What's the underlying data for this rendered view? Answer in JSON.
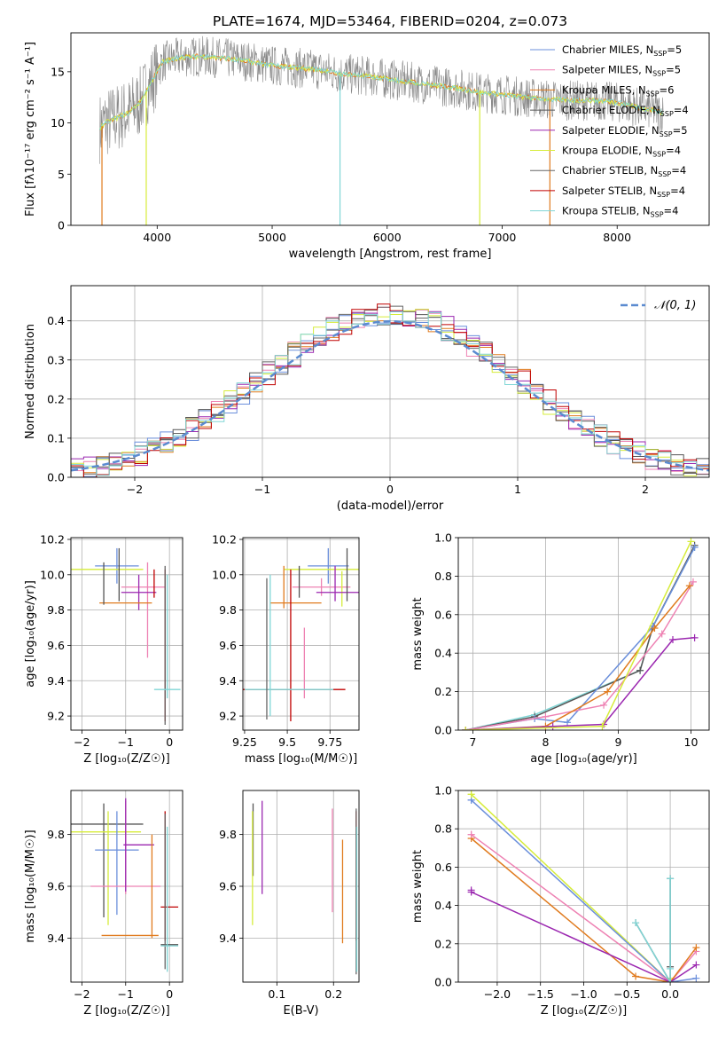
{
  "figure_title": "PLATE=1674, MJD=53464, FIBERID=0204, z=0.073",
  "palette": {
    "Chabrier MILES": "#6b8fdb",
    "Salpeter MILES": "#ee82b3",
    "Kroupa MILES": "#e07b1f",
    "Chabrier ELODIE": "#555555",
    "Salpeter ELODIE": "#9b27b0",
    "Kroupa ELODIE": "#d6ec3a",
    "Chabrier STELIB": "#666666",
    "Salpeter STELIB": "#c00000",
    "Kroupa STELIB": "#80d6d6",
    "normal": "#5b8bd0"
  },
  "chart_data": [
    {
      "id": "spectrum",
      "type": "line",
      "title": "PLATE=1674, MJD=53464, FIBERID=0204, z=0.073",
      "xlabel": "wavelength [Angstrom, rest frame]",
      "ylabel": "Flux [fλ10⁻¹⁷ erg cm⁻² s⁻¹ A⁻¹]",
      "xlim": [
        3250,
        8800
      ],
      "ylim": [
        0,
        18.8
      ],
      "xticks": [
        4000,
        5000,
        6000,
        7000,
        8000
      ],
      "yticks": [
        0,
        5,
        10,
        15
      ],
      "grid": false,
      "legend_position": "top-right",
      "legend": [
        {
          "label": "Chabrier MILES, N",
          "sub": "SSP",
          "suffix": "=5",
          "color": "#6b8fdb"
        },
        {
          "label": "Salpeter MILES, N",
          "sub": "SSP",
          "suffix": "=5",
          "color": "#ee82b3"
        },
        {
          "label": "Kroupa MILES, N",
          "sub": "SSP",
          "suffix": "=6",
          "color": "#e07b1f"
        },
        {
          "label": "Chabrier ELODIE, N",
          "sub": "SSP",
          "suffix": "=4",
          "color": "#555555"
        },
        {
          "label": "Salpeter ELODIE, N",
          "sub": "SSP",
          "suffix": "=5",
          "color": "#9b27b0"
        },
        {
          "label": "Kroupa ELODIE, N",
          "sub": "SSP",
          "suffix": "=4",
          "color": "#d6ec3a"
        },
        {
          "label": "Chabrier STELIB, N",
          "sub": "SSP",
          "suffix": "=4",
          "color": "#666666"
        },
        {
          "label": "Salpeter STELIB, N",
          "sub": "SSP",
          "suffix": "=4",
          "color": "#c00000"
        },
        {
          "label": "Kroupa STELIB, N",
          "sub": "SSP",
          "suffix": "=4",
          "color": "#80d6d6"
        }
      ],
      "continuum": {
        "x": [
          3500,
          3550,
          3650,
          3750,
          3850,
          3950,
          4050,
          4200,
          4400,
          4600,
          4800,
          5000,
          5200,
          5400,
          5600,
          5800,
          6000,
          6200,
          6400,
          6600,
          6800,
          7000,
          7200,
          7400,
          7600,
          7800,
          8000,
          8200,
          8400
        ],
        "y": [
          9.5,
          10.0,
          10.5,
          11.0,
          12.0,
          14.0,
          16.0,
          16.4,
          16.5,
          16.3,
          16.0,
          15.6,
          15.4,
          15.2,
          14.8,
          14.6,
          14.3,
          14.0,
          13.7,
          13.4,
          13.0,
          12.8,
          12.5,
          12.3,
          12.2,
          12.2,
          12.0,
          11.5,
          11.0
        ]
      },
      "drops": [
        {
          "x": 3520,
          "color": "#e07b1f"
        },
        {
          "x": 3905,
          "color": "#d6ec3a"
        },
        {
          "x": 5590,
          "color": "#80d6d6"
        },
        {
          "x": 6805,
          "color": "#d6ec3a"
        },
        {
          "x": 7415,
          "color": "#e07b1f"
        }
      ]
    },
    {
      "id": "residual-distribution",
      "type": "line",
      "xlabel": "(data-model)/error",
      "ylabel": "Normed distribution",
      "xlim": [
        -2.5,
        2.5
      ],
      "ylim": [
        0,
        0.49
      ],
      "xticks": [
        -2,
        -1,
        0,
        1,
        2
      ],
      "yticks": [
        0.0,
        0.1,
        0.2,
        0.3,
        0.4
      ],
      "grid": true,
      "legend_position": "top-right",
      "normal_label": "𝒩(0, 1)",
      "bin_width": 0.1,
      "series": [
        {
          "color": "#6b8fdb",
          "offset": 0.012
        },
        {
          "color": "#ee82b3",
          "offset": -0.015
        },
        {
          "color": "#e07b1f",
          "offset": 0.02
        },
        {
          "color": "#555555",
          "offset": 0.005
        },
        {
          "color": "#9b27b0",
          "offset": 0.025
        },
        {
          "color": "#d6ec3a",
          "offset": -0.01
        },
        {
          "color": "#666666",
          "offset": 0.0
        },
        {
          "color": "#c00000",
          "offset": 0.015
        },
        {
          "color": "#80d6d6",
          "offset": -0.005
        }
      ]
    },
    {
      "id": "age-vs-z",
      "type": "scatter",
      "xlabel": "Z [log₁₀(Z/Z☉)]",
      "ylabel": "age  [log₁₀(age/yr)]",
      "xlim": [
        -2.25,
        0.3
      ],
      "ylim": [
        9.12,
        10.21
      ],
      "xticks": [
        -2,
        -1,
        0
      ],
      "yticks": [
        9.2,
        9.4,
        9.6,
        9.8,
        10.0,
        10.2
      ],
      "grid": true,
      "errorbars": [
        {
          "x": -1.2,
          "xerr": 0.5,
          "y": 10.05,
          "yerr": 0.1,
          "color": "#6b8fdb"
        },
        {
          "x": -1.5,
          "xerr": 0.9,
          "y": 10.03,
          "yerr": 0.0,
          "color": "#d6ec3a"
        },
        {
          "x": -0.6,
          "xerr": 0.5,
          "y": 9.93,
          "yerr": 0.0,
          "color": "#ee82b3"
        },
        {
          "x": -0.5,
          "xerr": 0.0,
          "y": 9.8,
          "yerr": 0.27,
          "color": "#ee82b3"
        },
        {
          "x": -0.7,
          "xerr": 0.4,
          "y": 9.9,
          "yerr": 0.1,
          "color": "#9b27b0"
        },
        {
          "x": -1.0,
          "xerr": 0.6,
          "y": 9.84,
          "yerr": 0.0,
          "color": "#e07b1f"
        },
        {
          "x": -1.5,
          "xerr": 0.0,
          "y": 9.95,
          "yerr": 0.12,
          "color": "#555555"
        },
        {
          "x": -1.15,
          "xerr": 0.0,
          "y": 10.0,
          "yerr": 0.15,
          "color": "#555555"
        },
        {
          "x": -0.35,
          "xerr": 0.0,
          "y": 9.95,
          "yerr": 0.08,
          "color": "#c00000"
        },
        {
          "x": -0.1,
          "xerr": 0.0,
          "y": 9.6,
          "yerr": 0.43,
          "color": "#c00000"
        },
        {
          "x": -0.1,
          "xerr": 0.0,
          "y": 9.6,
          "yerr": 0.45,
          "color": "#666666"
        },
        {
          "x": -0.05,
          "xerr": 0.3,
          "y": 9.35,
          "yerr": 0.0,
          "color": "#80d6d6"
        },
        {
          "x": -0.05,
          "xerr": 0.0,
          "y": 9.65,
          "yerr": 0.35,
          "color": "#80d6d6"
        }
      ]
    },
    {
      "id": "age-vs-mass",
      "type": "scatter",
      "xlabel": "mass [log₁₀(M/M☉)]",
      "ylabel": "",
      "xlim": [
        9.24,
        9.92
      ],
      "ylim": [
        9.12,
        10.21
      ],
      "xticks": [
        9.25,
        9.5,
        9.75
      ],
      "yticks": [
        9.2,
        9.4,
        9.6,
        9.8,
        10.0,
        10.2
      ],
      "grid": true,
      "errorbars": [
        {
          "x": 9.74,
          "xerr": 0.12,
          "y": 10.05,
          "yerr": 0.1,
          "color": "#6b8fdb"
        },
        {
          "x": 9.7,
          "xerr": 0.17,
          "y": 9.93,
          "yerr": 0.05,
          "color": "#ee82b3"
        },
        {
          "x": 9.6,
          "xerr": 0.0,
          "y": 9.5,
          "yerr": 0.2,
          "color": "#ee82b3"
        },
        {
          "x": 9.7,
          "xerr": 0.22,
          "y": 10.03,
          "yerr": 0.0,
          "color": "#d6ec3a"
        },
        {
          "x": 9.82,
          "xerr": 0.0,
          "y": 9.92,
          "yerr": 0.1,
          "color": "#d6ec3a"
        },
        {
          "x": 9.8,
          "xerr": 0.13,
          "y": 9.9,
          "yerr": 0.0,
          "color": "#9b27b0"
        },
        {
          "x": 9.78,
          "xerr": 0.0,
          "y": 9.95,
          "yerr": 0.1,
          "color": "#9b27b0"
        },
        {
          "x": 9.55,
          "xerr": 0.15,
          "y": 9.84,
          "yerr": 0.0,
          "color": "#e07b1f"
        },
        {
          "x": 9.48,
          "xerr": 0.0,
          "y": 9.93,
          "yerr": 0.12,
          "color": "#e07b1f"
        },
        {
          "x": 9.85,
          "xerr": 0.0,
          "y": 10.0,
          "yerr": 0.15,
          "color": "#555555"
        },
        {
          "x": 9.57,
          "xerr": 0.0,
          "y": 9.96,
          "yerr": 0.09,
          "color": "#555555"
        },
        {
          "x": 9.52,
          "xerr": 0.32,
          "y": 9.35,
          "yerr": 0.0,
          "color": "#c00000"
        },
        {
          "x": 9.52,
          "xerr": 0.0,
          "y": 9.6,
          "yerr": 0.43,
          "color": "#c00000"
        },
        {
          "x": 9.51,
          "xerr": 0.26,
          "y": 9.35,
          "yerr": 0.0,
          "color": "#80d6d6"
        },
        {
          "x": 9.4,
          "xerr": 0.0,
          "y": 9.6,
          "yerr": 0.4,
          "color": "#80d6d6"
        },
        {
          "x": 9.38,
          "xerr": 0.0,
          "y": 9.58,
          "yerr": 0.4,
          "color": "#666666"
        }
      ]
    },
    {
      "id": "mass-weight-vs-age",
      "type": "line",
      "xlabel": "age  [log₁₀(age/yr)]",
      "ylabel": "mass weight",
      "xlim": [
        6.8,
        10.25
      ],
      "ylim": [
        0,
        1
      ],
      "xticks": [
        7,
        8,
        9,
        10
      ],
      "yticks": [
        0.0,
        0.2,
        0.4,
        0.6,
        0.8,
        1.0
      ],
      "grid": true,
      "series": [
        {
          "color": "#80d6d6",
          "x": [
            6.9,
            7.85,
            9.3,
            9.48,
            10.05
          ],
          "y": [
            0.0,
            0.08,
            0.31,
            0.54,
            0.95
          ]
        },
        {
          "color": "#555555",
          "x": [
            6.9,
            7.85,
            9.3,
            9.48,
            10.05
          ],
          "y": [
            0.0,
            0.07,
            0.31,
            0.54,
            0.96
          ]
        },
        {
          "color": "#6b8fdb",
          "x": [
            6.9,
            7.85,
            8.3,
            9.48,
            10.05
          ],
          "y": [
            0.0,
            0.06,
            0.04,
            0.54,
            0.95
          ]
        },
        {
          "color": "#ee82b3",
          "x": [
            6.9,
            8.0,
            8.8,
            9.6,
            10.03
          ],
          "y": [
            0.0,
            0.07,
            0.13,
            0.5,
            0.77
          ]
        },
        {
          "color": "#e07b1f",
          "x": [
            6.9,
            8.0,
            8.85,
            9.5,
            9.98
          ],
          "y": [
            0.0,
            0.02,
            0.2,
            0.53,
            0.75
          ]
        },
        {
          "color": "#9b27b0",
          "x": [
            6.9,
            8.1,
            8.8,
            9.75,
            10.05
          ],
          "y": [
            0.0,
            0.02,
            0.03,
            0.47,
            0.48
          ]
        },
        {
          "color": "#d6ec3a",
          "x": [
            6.9,
            8.78,
            10.0
          ],
          "y": [
            0.0,
            0.02,
            0.98
          ]
        }
      ]
    },
    {
      "id": "mass-vs-z",
      "type": "scatter",
      "xlabel": "Z [log₁₀(Z/Z☉)]",
      "ylabel": "mass [log₁₀(M/M☉)]",
      "xlim": [
        -2.25,
        0.3
      ],
      "ylim": [
        9.23,
        9.97
      ],
      "xticks": [
        -2,
        -1,
        0
      ],
      "yticks": [
        9.4,
        9.6,
        9.8
      ],
      "grid": true,
      "errorbars": [
        {
          "x": -1.5,
          "xerr": 0.9,
          "y": 9.84,
          "yerr": 0.0,
          "color": "#555555"
        },
        {
          "x": -1.5,
          "xerr": 0.0,
          "y": 9.7,
          "yerr": 0.22,
          "color": "#555555"
        },
        {
          "x": -1.5,
          "xerr": 0.85,
          "y": 9.81,
          "yerr": 0.0,
          "color": "#d6ec3a"
        },
        {
          "x": -1.4,
          "xerr": 0.0,
          "y": 9.67,
          "yerr": 0.22,
          "color": "#d6ec3a"
        },
        {
          "x": -1.2,
          "xerr": 0.5,
          "y": 9.74,
          "yerr": 0.0,
          "color": "#6b8fdb"
        },
        {
          "x": -1.2,
          "xerr": 0.0,
          "y": 9.69,
          "yerr": 0.2,
          "color": "#6b8fdb"
        },
        {
          "x": -1.0,
          "xerr": 0.8,
          "y": 9.6,
          "yerr": 0.0,
          "color": "#ee82b3"
        },
        {
          "x": -1.0,
          "xerr": 0.0,
          "y": 9.75,
          "yerr": 0.18,
          "color": "#ee82b3"
        },
        {
          "x": -0.7,
          "xerr": 0.35,
          "y": 9.76,
          "yerr": 0.0,
          "color": "#9b27b0"
        },
        {
          "x": -1.0,
          "xerr": 0.0,
          "y": 9.76,
          "yerr": 0.18,
          "color": "#9b27b0"
        },
        {
          "x": -0.9,
          "xerr": 0.65,
          "y": 9.41,
          "yerr": 0.0,
          "color": "#e07b1f"
        },
        {
          "x": -0.4,
          "xerr": 0.0,
          "y": 9.6,
          "yerr": 0.2,
          "color": "#e07b1f"
        },
        {
          "x": 0.0,
          "xerr": 0.2,
          "y": 9.52,
          "yerr": 0.0,
          "color": "#c00000"
        },
        {
          "x": -0.1,
          "xerr": 0.0,
          "y": 9.64,
          "yerr": 0.25,
          "color": "#c00000"
        },
        {
          "x": 0.0,
          "xerr": 0.2,
          "y": 9.375,
          "yerr": 0.0,
          "color": "#666666"
        },
        {
          "x": -0.1,
          "xerr": 0.0,
          "y": 9.58,
          "yerr": 0.3,
          "color": "#666666"
        },
        {
          "x": 0.0,
          "xerr": 0.2,
          "y": 9.37,
          "yerr": 0.0,
          "color": "#80d6d6"
        },
        {
          "x": -0.05,
          "xerr": 0.0,
          "y": 9.55,
          "yerr": 0.28,
          "color": "#80d6d6"
        }
      ]
    },
    {
      "id": "mass-vs-ebv",
      "type": "scatter",
      "xlabel": "E(B-V)",
      "ylabel": "",
      "xlim": [
        0.04,
        0.245
      ],
      "ylim": [
        9.23,
        9.97
      ],
      "xticks": [
        0.1,
        0.2
      ],
      "yticks": [
        9.4,
        9.6,
        9.8
      ],
      "grid": true,
      "errorbars": [
        {
          "x": 0.058,
          "xerr": 0.0,
          "y": 9.78,
          "yerr": 0.14,
          "color": "#555555"
        },
        {
          "x": 0.057,
          "xerr": 0.0,
          "y": 9.67,
          "yerr": 0.22,
          "color": "#d6ec3a"
        },
        {
          "x": 0.074,
          "xerr": 0.0,
          "y": 9.75,
          "yerr": 0.18,
          "color": "#9b27b0"
        },
        {
          "x": 0.198,
          "xerr": 0.0,
          "y": 9.7,
          "yerr": 0.2,
          "color": "#ee82b3"
        },
        {
          "x": 0.216,
          "xerr": 0.0,
          "y": 9.58,
          "yerr": 0.2,
          "color": "#e07b1f"
        },
        {
          "x": 0.24,
          "xerr": 0.0,
          "y": 9.64,
          "yerr": 0.25,
          "color": "#c00000"
        },
        {
          "x": 0.24,
          "xerr": 0.0,
          "y": 9.58,
          "yerr": 0.32,
          "color": "#666666"
        },
        {
          "x": 0.241,
          "xerr": 0.0,
          "y": 9.55,
          "yerr": 0.28,
          "color": "#80d6d6"
        }
      ]
    },
    {
      "id": "mass-weight-vs-z",
      "type": "line",
      "xlabel": "Z [log₁₀(Z/Z☉)]",
      "ylabel": "mass weight",
      "xlim": [
        -2.45,
        0.45
      ],
      "ylim": [
        0,
        1
      ],
      "xticks": [
        -2.0,
        -1.5,
        -1.0,
        -0.5,
        0.0
      ],
      "xtick_labels": [
        "−2.0",
        "−1.5",
        "−1.0",
        "−0.5",
        "0.0"
      ],
      "yticks": [
        0.0,
        0.2,
        0.4,
        0.6,
        0.8,
        1.0
      ],
      "grid": true,
      "series": [
        {
          "color": "#d6ec3a",
          "x": [
            -2.3,
            0.0,
            0.0
          ],
          "y": [
            0.98,
            0.0,
            0.02
          ]
        },
        {
          "color": "#6b8fdb",
          "x": [
            -2.3,
            0.0,
            0.3
          ],
          "y": [
            0.95,
            0.0,
            0.02
          ]
        },
        {
          "color": "#ee82b3",
          "x": [
            -2.3,
            0.0,
            0.3
          ],
          "y": [
            0.77,
            0.0,
            0.16
          ]
        },
        {
          "color": "#e07b1f",
          "x": [
            -2.3,
            -0.4,
            0.0,
            0.3
          ],
          "y": [
            0.75,
            0.03,
            0.0,
            0.18
          ]
        },
        {
          "color": "#9b27b0",
          "x": [
            -2.3,
            0.0,
            0.3
          ],
          "y": [
            0.47,
            0.0,
            0.09
          ]
        },
        {
          "color": "#555555",
          "x": [
            -0.4,
            0.0,
            0.0,
            0.0
          ],
          "y": [
            0.31,
            0.0,
            0.54,
            0.08
          ]
        },
        {
          "color": "#80d6d6",
          "x": [
            -0.4,
            0.0,
            0.0,
            0.0
          ],
          "y": [
            0.31,
            0.0,
            0.54,
            0.07
          ]
        }
      ],
      "markers_only": [
        {
          "color": "#9b27b0",
          "x": -2.3,
          "y": 0.48
        },
        {
          "color": "#ee82b3",
          "x": -2.3,
          "y": 0.77
        },
        {
          "color": "#6b8fdb",
          "x": -2.3,
          "y": 0.95
        },
        {
          "color": "#d6ec3a",
          "x": -2.3,
          "y": 0.98
        }
      ]
    }
  ]
}
